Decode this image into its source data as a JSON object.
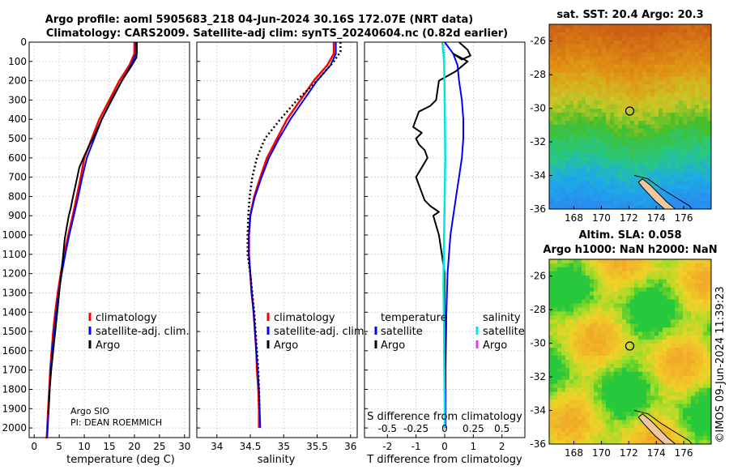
{
  "header": {
    "line1": "Argo profile: aoml 5905683_218 04-Jun-2024 30.16S 172.07E (NRT data)",
    "line2": "Climatology: CARS2009. Satellite-adj clim: synTS_20240604.nc (0.82d earlier)"
  },
  "colors": {
    "climatology": "#ff0000",
    "satellite_adj": "#0000ff",
    "argo": "#000000",
    "satellite_salinity": "#00e5e5",
    "argo_salinity": "#e040e0"
  },
  "chart_data": [
    {
      "id": "temperature",
      "type": "line",
      "xlabel": "temperature (deg C)",
      "ylabel": "",
      "xlim": [
        -1,
        31
      ],
      "ylim": [
        2050,
        0
      ],
      "xticks": [
        0,
        5,
        10,
        15,
        20,
        25,
        30
      ],
      "xticklabels": [
        "0",
        "5",
        "10",
        "15",
        "20",
        "25",
        "30"
      ],
      "yticks": [
        0,
        100,
        200,
        300,
        400,
        500,
        600,
        700,
        800,
        900,
        1000,
        1100,
        1200,
        1300,
        1400,
        1500,
        1600,
        1700,
        1800,
        1900,
        2000
      ],
      "yticklabels": [
        "0",
        "100",
        "200",
        "300",
        "400",
        "500",
        "600",
        "700",
        "800",
        "900",
        "1000",
        "1100",
        "1200",
        "1300",
        "1400",
        "1500",
        "1600",
        "1700",
        "1800",
        "1900",
        "2000"
      ],
      "grid": true,
      "legend_labels": [
        "climatology",
        "satellite-adj. clim.",
        "Argo"
      ],
      "notes": [
        "Argo SIO",
        "PI: DEAN ROEMMICH"
      ],
      "series": [
        {
          "name": "climatology",
          "color": "#ff0000",
          "width": 2.5,
          "x": [
            20.0,
            20.0,
            19.0,
            17.0,
            15.0,
            13.0,
            11.5,
            10.0,
            9.3,
            8.5,
            7.7,
            6.8,
            6.0,
            5.3,
            4.7,
            4.2,
            3.8,
            3.5,
            3.2,
            3.0,
            2.8,
            2.6,
            2.5,
            2.4,
            2.3,
            2.3
          ],
          "y": [
            0,
            60,
            120,
            200,
            300,
            400,
            500,
            600,
            700,
            800,
            900,
            1000,
            1100,
            1200,
            1300,
            1400,
            1500,
            1600,
            1700,
            1800,
            1900,
            2000,
            2050,
            2050,
            2050,
            2050
          ]
        },
        {
          "name": "satellite-adj. clim.",
          "color": "#0000ff",
          "width": 2,
          "x": [
            20.3,
            20.3,
            19.3,
            17.5,
            15.5,
            13.5,
            12.0,
            10.5,
            9.6,
            8.8,
            7.9,
            7.0,
            6.2,
            5.5,
            4.9,
            4.4,
            4.0,
            3.6,
            3.3,
            3.1,
            2.9,
            2.7,
            2.6
          ],
          "y": [
            0,
            60,
            120,
            200,
            300,
            400,
            500,
            600,
            700,
            800,
            900,
            1000,
            1100,
            1200,
            1300,
            1400,
            1500,
            1600,
            1700,
            1800,
            1900,
            2000,
            2050
          ]
        },
        {
          "name": "Argo",
          "color": "#000000",
          "width": 2,
          "x": [
            20.5,
            20.5,
            20.4,
            19.5,
            17.5,
            15.4,
            13.5,
            12.3,
            11.1,
            10.0,
            9.0,
            8.6,
            8.1,
            7.6,
            7.3,
            6.9,
            6.5,
            6.1,
            5.8,
            5.4,
            5.0,
            4.6,
            4.2,
            3.8,
            3.4,
            3.1,
            2.9,
            2.8
          ],
          "y": [
            0,
            50,
            80,
            120,
            200,
            300,
            400,
            470,
            530,
            590,
            650,
            700,
            760,
            820,
            860,
            900,
            960,
            1020,
            1100,
            1200,
            1300,
            1400,
            1500,
            1600,
            1700,
            1800,
            1900,
            1930
          ]
        }
      ]
    },
    {
      "id": "salinity",
      "type": "line",
      "xlabel": "salinity",
      "xlim": [
        33.7,
        36.1
      ],
      "ylim": [
        2050,
        0
      ],
      "xticks": [
        34,
        34.5,
        35,
        35.5,
        36
      ],
      "xticklabels": [
        "34",
        "34.5",
        "35",
        "35.5",
        "36"
      ],
      "grid": true,
      "legend_labels": [
        "climatology",
        "satellite-adj. clim.",
        "Argo"
      ],
      "series": [
        {
          "name": "climatology",
          "color": "#ff0000",
          "width": 2.5,
          "x": [
            35.75,
            35.75,
            35.65,
            35.45,
            35.25,
            35.05,
            34.9,
            34.75,
            34.65,
            34.56,
            34.5,
            34.48,
            34.48,
            34.5,
            34.52,
            34.55,
            34.57,
            34.59,
            34.6,
            34.62,
            34.63,
            34.63
          ],
          "y": [
            0,
            60,
            120,
            200,
            300,
            400,
            500,
            600,
            700,
            800,
            900,
            1000,
            1100,
            1200,
            1300,
            1400,
            1500,
            1600,
            1700,
            1800,
            1900,
            2000
          ]
        },
        {
          "name": "satellite-adj. clim.",
          "color": "#0000ff",
          "width": 2,
          "x": [
            35.78,
            35.78,
            35.7,
            35.5,
            35.3,
            35.1,
            34.93,
            34.78,
            34.67,
            34.57,
            34.5,
            34.48,
            34.48,
            34.5,
            34.52,
            34.55,
            34.57,
            34.59,
            34.61,
            34.63,
            34.64,
            34.65
          ],
          "y": [
            0,
            60,
            120,
            200,
            300,
            400,
            500,
            600,
            700,
            800,
            900,
            1000,
            1100,
            1200,
            1300,
            1400,
            1500,
            1600,
            1700,
            1800,
            1900,
            2000
          ]
        },
        {
          "name": "Argo",
          "color": "#000000",
          "width": 2.5,
          "dash": "2 3",
          "x": [
            35.85,
            35.85,
            35.75,
            35.5,
            35.2,
            34.95,
            34.72,
            34.6,
            34.53,
            34.49,
            34.47,
            34.46,
            34.46,
            34.5,
            34.53,
            34.56,
            34.58,
            34.6,
            34.62,
            34.63,
            34.64
          ],
          "y": [
            0,
            50,
            100,
            200,
            300,
            400,
            500,
            600,
            700,
            800,
            900,
            1000,
            1100,
            1200,
            1300,
            1400,
            1500,
            1600,
            1700,
            1800,
            1900
          ]
        }
      ]
    },
    {
      "id": "difference",
      "type": "line",
      "xlabel": "T difference from climatology",
      "xlabel_top": "S difference from climatology",
      "xlim": [
        -2.8,
        2.8
      ],
      "ylim": [
        2050,
        0
      ],
      "xticks": [
        -2,
        -1,
        0,
        1,
        2
      ],
      "xticklabels": [
        "-2",
        "-1",
        "0",
        "1",
        "2"
      ],
      "sticks": [
        -0.5,
        -0.25,
        0,
        0.25,
        0.5
      ],
      "sticklabels": [
        "-0.5",
        "-0.25",
        "0",
        "0.25",
        "0.5"
      ],
      "grid": true,
      "legend_titles": [
        "temperature",
        "salinity"
      ],
      "legend_labels_left": [
        "satellite",
        "Argo"
      ],
      "legend_labels_right": [
        "satellite",
        "Argo"
      ],
      "series": [
        {
          "name": "temperature satellite",
          "color": "#0000ff",
          "width": 2,
          "x": [
            0.0,
            0.3,
            0.45,
            0.5,
            0.6,
            0.65,
            0.65,
            0.6,
            0.5,
            0.4,
            0.3,
            0.2,
            0.15,
            0.1,
            0.08,
            0.06,
            0.05,
            0.04,
            0.03,
            0.03,
            0.03,
            0.03
          ],
          "y": [
            0,
            60,
            120,
            200,
            300,
            400,
            500,
            600,
            700,
            800,
            900,
            1000,
            1100,
            1200,
            1300,
            1400,
            1500,
            1600,
            1700,
            1800,
            1900,
            2000
          ]
        },
        {
          "name": "temperature Argo",
          "color": "#000000",
          "width": 2,
          "x": [
            0.5,
            0.8,
            0.9,
            0.6,
            0.3,
            0.8,
            0.4,
            -0.2,
            -0.3,
            -0.5,
            -0.9,
            -1.0,
            -1.1,
            -0.8,
            -1.0,
            -0.9,
            -0.7,
            -0.6,
            -0.8,
            -1.0,
            -0.9,
            -0.8,
            -0.7,
            -0.5,
            -0.2,
            -0.4,
            -0.3,
            -0.2,
            -0.1,
            0.0,
            0.0,
            0.02,
            0.02
          ],
          "y": [
            0,
            40,
            70,
            90,
            60,
            100,
            150,
            200,
            300,
            330,
            360,
            400,
            440,
            470,
            500,
            530,
            560,
            600,
            650,
            700,
            740,
            780,
            820,
            850,
            880,
            900,
            950,
            1000,
            1100,
            1200,
            1400,
            1600,
            1800
          ]
        },
        {
          "name": "salinity satellite",
          "color": "#00e5e5",
          "width": 2.5,
          "x": [
            -0.08,
            -0.02,
            0.0,
            0.02,
            0.0,
            -0.02,
            -0.03,
            -0.04,
            -0.04,
            -0.03,
            -0.02,
            -0.02,
            -0.01,
            0.0,
            0.0
          ],
          "y": [
            0,
            100,
            300,
            600,
            800,
            1000,
            1100,
            1200,
            1300,
            1400,
            1500,
            1600,
            1700,
            1900,
            2000
          ]
        }
      ]
    },
    {
      "id": "sst_map",
      "type": "heatmap",
      "title": "sat. SST: 20.4 Argo: 20.3",
      "xlim": [
        166.2,
        178
      ],
      "ylim": [
        -36,
        -25
      ],
      "xticks": [
        168,
        170,
        172,
        174,
        176
      ],
      "xticklabels": [
        "168",
        "170",
        "172",
        "174",
        "176"
      ],
      "yticks": [
        -26,
        -28,
        -30,
        -32,
        -34,
        -36
      ],
      "yticklabels": [
        "-26",
        "-28",
        "-30",
        "-32",
        "-34",
        "-36"
      ],
      "float_position": [
        172.07,
        -30.16
      ]
    },
    {
      "id": "sla_map",
      "type": "heatmap",
      "title_line1": "Altim. SLA: 0.058",
      "title_line2": "Argo h1000: NaN h2000: NaN",
      "xlim": [
        166.2,
        178
      ],
      "ylim": [
        -36,
        -25
      ],
      "xticks": [
        168,
        170,
        172,
        174,
        176
      ],
      "xticklabels": [
        "168",
        "170",
        "172",
        "174",
        "176"
      ],
      "yticks": [
        -26,
        -28,
        -30,
        -32,
        -34,
        -36
      ],
      "yticklabels": [
        "-26",
        "-28",
        "-30",
        "-32",
        "-34",
        "-36"
      ],
      "float_position": [
        172.07,
        -30.16
      ]
    }
  ],
  "footer": {
    "stamp": "©IMOS 09-Jun-2024 11:39:23"
  }
}
